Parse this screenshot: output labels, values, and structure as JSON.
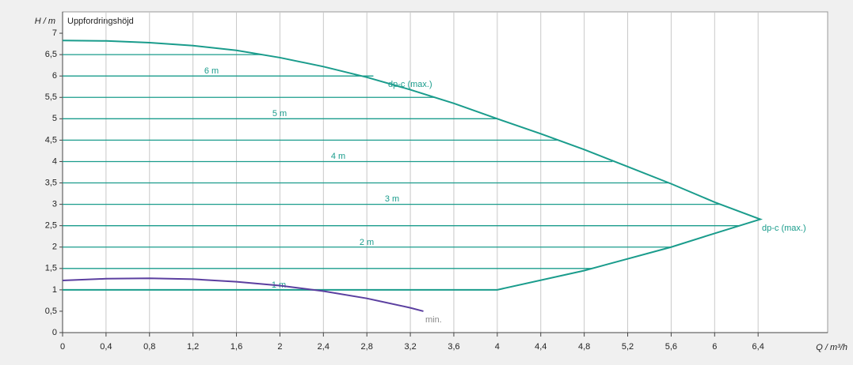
{
  "chart_data": {
    "type": "line",
    "title": "Uppfordringshöjd",
    "y_axis_label": "H / m",
    "x_axis_label": "Q / m³/h",
    "xlim": [
      0,
      7.04
    ],
    "ylim": [
      0,
      7.5
    ],
    "xticks": [
      0,
      {
        "value": 0.4,
        "label": "0,4"
      },
      {
        "value": 0.8,
        "label": "0,8"
      },
      {
        "value": 1.2,
        "label": "1,2"
      },
      {
        "value": 1.6,
        "label": "1,6"
      },
      2,
      {
        "value": 2.4,
        "label": "2,4"
      },
      {
        "value": 2.8,
        "label": "2,8"
      },
      {
        "value": 3.2,
        "label": "3,2"
      },
      {
        "value": 3.6,
        "label": "3,6"
      },
      4,
      {
        "value": 4.4,
        "label": "4,4"
      },
      {
        "value": 4.8,
        "label": "4,8"
      },
      {
        "value": 5.2,
        "label": "5,2"
      },
      {
        "value": 5.6,
        "label": "5,6"
      },
      6,
      {
        "value": 6.4,
        "label": "6,4"
      }
    ],
    "yticks": [
      0,
      {
        "value": 0.5,
        "label": "0,5"
      },
      1,
      {
        "value": 1.5,
        "label": "1,5"
      },
      2,
      {
        "value": 2.5,
        "label": "2,5"
      },
      3,
      {
        "value": 3.5,
        "label": "3,5"
      },
      4,
      {
        "value": 4.5,
        "label": "4,5"
      },
      5,
      {
        "value": 5.5,
        "label": "5,5"
      },
      6,
      {
        "value": 6.5,
        "label": "6,5"
      },
      7
    ],
    "grid": true,
    "series": [
      {
        "name": "dp-c (max.)",
        "color": "#1a9c8c",
        "x": [
          0,
          0.4,
          0.8,
          1.2,
          1.6,
          2.0,
          2.4,
          2.8,
          3.2,
          3.6,
          4.0,
          4.4,
          4.8,
          5.2,
          5.6,
          6.0,
          6.42,
          6.0,
          5.6,
          4.8,
          4.0,
          0
        ],
        "values": [
          6.83,
          6.82,
          6.78,
          6.71,
          6.6,
          6.43,
          6.22,
          5.97,
          5.68,
          5.36,
          5.0,
          4.65,
          4.28,
          3.88,
          3.48,
          3.05,
          2.65,
          2.32,
          2.0,
          1.45,
          1.0,
          1.0
        ]
      },
      {
        "name": "min.",
        "color": "#5b3fa0",
        "x": [
          0,
          0.4,
          0.8,
          1.2,
          1.6,
          2.0,
          2.4,
          2.8,
          3.2,
          3.32
        ],
        "values": [
          1.22,
          1.26,
          1.27,
          1.25,
          1.19,
          1.1,
          0.97,
          0.8,
          0.58,
          0.5
        ]
      }
    ],
    "max_label_2": "dp-c (max.)",
    "level_color": "#1a9c8c",
    "levels": [
      {
        "h": 6.5,
        "x_end": 1.85
      },
      {
        "h": 6,
        "x_end": 2.86,
        "label": "6 m"
      },
      {
        "h": 5.5,
        "x_end": 3.42
      },
      {
        "h": 5,
        "x_end": 4.0,
        "label": "5 m"
      },
      {
        "h": 4.5,
        "x_end": 4.56
      },
      {
        "h": 4,
        "x_end": 5.06,
        "label": "4 m"
      },
      {
        "h": 3.5,
        "x_end": 5.58
      },
      {
        "h": 3,
        "x_end": 6.05,
        "label": "3 m"
      },
      {
        "h": 2.5,
        "x_end": 6.23
      },
      {
        "h": 2,
        "x_end": 5.6,
        "label": "2 m"
      },
      {
        "h": 1.5,
        "x_end": 4.87
      },
      {
        "h": 1,
        "x_end": 4.0,
        "label": "1 m"
      }
    ]
  }
}
